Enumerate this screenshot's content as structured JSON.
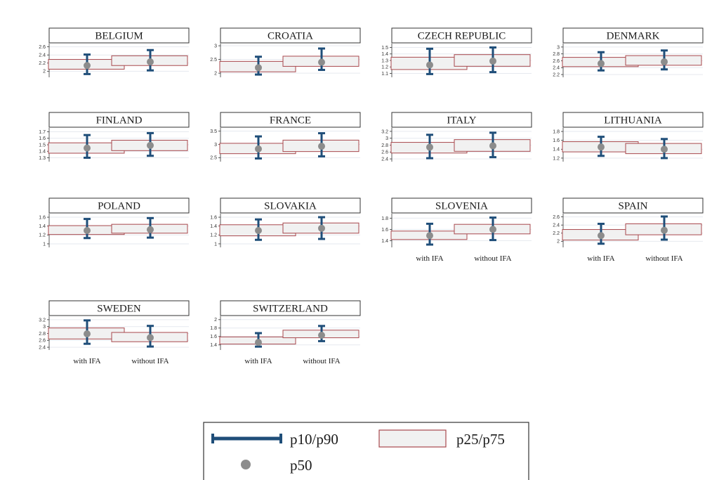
{
  "colors": {
    "whisker": "#1f4e79",
    "box_stroke": "#a8484d",
    "box_fill": "#f1f1f1",
    "median": "#8c8c8c",
    "grid": "#e6e9ef",
    "frame": "#333333"
  },
  "legend": {
    "whisker_label": "p10/p90",
    "box_label": "p25/p75",
    "median_label": "p50"
  },
  "chart_data": [
    {
      "type": "box",
      "title": "BELGIUM",
      "categories": [
        "with IFA",
        "without IFA"
      ],
      "show_categories": false,
      "yticks": [
        2,
        2.2,
        2.4,
        2.6
      ],
      "ylim": [
        1.85,
        2.68
      ],
      "series": [
        {
          "name": "with IFA",
          "p10": 1.93,
          "p25": 2.05,
          "p50": 2.14,
          "p75": 2.29,
          "p90": 2.41
        },
        {
          "name": "without IFA",
          "p10": 2.02,
          "p25": 2.14,
          "p50": 2.23,
          "p75": 2.38,
          "p90": 2.52
        }
      ]
    },
    {
      "type": "box",
      "title": "CROATIA",
      "categories": [
        "with IFA",
        "without IFA"
      ],
      "show_categories": false,
      "yticks": [
        2,
        2.5,
        3
      ],
      "ylim": [
        1.85,
        3.08
      ],
      "series": [
        {
          "name": "with IFA",
          "p10": 1.95,
          "p25": 2.05,
          "p50": 2.2,
          "p75": 2.43,
          "p90": 2.6
        },
        {
          "name": "without IFA",
          "p10": 2.12,
          "p25": 2.25,
          "p50": 2.4,
          "p75": 2.62,
          "p90": 2.9
        }
      ]
    },
    {
      "type": "box",
      "title": "CZECH REPUBLIC",
      "categories": [
        "with IFA",
        "without IFA"
      ],
      "show_categories": false,
      "yticks": [
        1.1,
        1.2,
        1.3,
        1.4,
        1.5
      ],
      "ylim": [
        1.04,
        1.56
      ],
      "series": [
        {
          "name": "with IFA",
          "p10": 1.09,
          "p25": 1.16,
          "p50": 1.23,
          "p75": 1.35,
          "p90": 1.48
        },
        {
          "name": "without IFA",
          "p10": 1.12,
          "p25": 1.21,
          "p50": 1.29,
          "p75": 1.39,
          "p90": 1.5
        }
      ]
    },
    {
      "type": "box",
      "title": "DENMARK",
      "categories": [
        "with IFA",
        "without IFA"
      ],
      "show_categories": false,
      "yticks": [
        2.2,
        2.4,
        2.6,
        2.8,
        3
      ],
      "ylim": [
        2.12,
        3.1
      ],
      "series": [
        {
          "name": "with IFA",
          "p10": 2.32,
          "p25": 2.43,
          "p50": 2.52,
          "p75": 2.7,
          "p90": 2.85
        },
        {
          "name": "without IFA",
          "p10": 2.35,
          "p25": 2.47,
          "p50": 2.57,
          "p75": 2.75,
          "p90": 2.9
        }
      ]
    },
    {
      "type": "box",
      "title": "FINLAND",
      "categories": [
        "with IFA",
        "without IFA"
      ],
      "show_categories": false,
      "yticks": [
        1.3,
        1.4,
        1.5,
        1.6,
        1.7
      ],
      "ylim": [
        1.24,
        1.76
      ],
      "series": [
        {
          "name": "with IFA",
          "p10": 1.3,
          "p25": 1.37,
          "p50": 1.45,
          "p75": 1.53,
          "p90": 1.65
        },
        {
          "name": "without IFA",
          "p10": 1.33,
          "p25": 1.41,
          "p50": 1.49,
          "p75": 1.57,
          "p90": 1.68
        }
      ]
    },
    {
      "type": "box",
      "title": "FRANCE",
      "categories": [
        "with IFA",
        "without IFA"
      ],
      "show_categories": false,
      "yticks": [
        2.5,
        3,
        3.5
      ],
      "ylim": [
        2.35,
        3.62
      ],
      "series": [
        {
          "name": "with IFA",
          "p10": 2.47,
          "p25": 2.65,
          "p50": 2.83,
          "p75": 3.04,
          "p90": 3.3
        },
        {
          "name": "without IFA",
          "p10": 2.55,
          "p25": 2.73,
          "p50": 2.93,
          "p75": 3.16,
          "p90": 3.42
        }
      ]
    },
    {
      "type": "box",
      "title": "ITALY",
      "categories": [
        "with IFA",
        "without IFA"
      ],
      "show_categories": false,
      "yticks": [
        2.4,
        2.6,
        2.8,
        3,
        3.2
      ],
      "ylim": [
        2.32,
        3.3
      ],
      "series": [
        {
          "name": "with IFA",
          "p10": 2.42,
          "p25": 2.57,
          "p50": 2.74,
          "p75": 2.88,
          "p90": 3.1
        },
        {
          "name": "without IFA",
          "p10": 2.45,
          "p25": 2.62,
          "p50": 2.78,
          "p75": 2.96,
          "p90": 3.16
        }
      ]
    },
    {
      "type": "box",
      "title": "LITHUANIA",
      "categories": [
        "with IFA",
        "without IFA"
      ],
      "show_categories": false,
      "yticks": [
        1.2,
        1.4,
        1.6,
        1.8
      ],
      "ylim": [
        1.12,
        1.88
      ],
      "series": [
        {
          "name": "with IFA",
          "p10": 1.25,
          "p25": 1.34,
          "p50": 1.45,
          "p75": 1.57,
          "p90": 1.68
        },
        {
          "name": "without IFA",
          "p10": 1.2,
          "p25": 1.3,
          "p50": 1.4,
          "p75": 1.53,
          "p90": 1.63
        }
      ]
    },
    {
      "type": "box",
      "title": "POLAND",
      "categories": [
        "with IFA",
        "without IFA"
      ],
      "show_categories": false,
      "yticks": [
        1,
        1.2,
        1.4,
        1.6
      ],
      "ylim": [
        0.92,
        1.68
      ],
      "series": [
        {
          "name": "with IFA",
          "p10": 1.13,
          "p25": 1.21,
          "p50": 1.3,
          "p75": 1.41,
          "p90": 1.56
        },
        {
          "name": "without IFA",
          "p10": 1.14,
          "p25": 1.24,
          "p50": 1.32,
          "p75": 1.44,
          "p90": 1.58
        }
      ]
    },
    {
      "type": "box",
      "title": "SLOVAKIA",
      "categories": [
        "with IFA",
        "without IFA"
      ],
      "show_categories": false,
      "yticks": [
        1,
        1.2,
        1.4,
        1.6
      ],
      "ylim": [
        0.92,
        1.68
      ],
      "series": [
        {
          "name": "with IFA",
          "p10": 1.09,
          "p25": 1.18,
          "p50": 1.3,
          "p75": 1.43,
          "p90": 1.55
        },
        {
          "name": "without IFA",
          "p10": 1.11,
          "p25": 1.24,
          "p50": 1.35,
          "p75": 1.47,
          "p90": 1.6
        }
      ]
    },
    {
      "type": "box",
      "title": "SLOVENIA",
      "categories": [
        "with IFA",
        "without IFA"
      ],
      "show_categories": true,
      "yticks": [
        1.4,
        1.6,
        1.8
      ],
      "ylim": [
        1.28,
        1.88
      ],
      "series": [
        {
          "name": "with IFA",
          "p10": 1.33,
          "p25": 1.42,
          "p50": 1.49,
          "p75": 1.57,
          "p90": 1.7
        },
        {
          "name": "without IFA",
          "p10": 1.41,
          "p25": 1.52,
          "p50": 1.6,
          "p75": 1.69,
          "p90": 1.81
        }
      ]
    },
    {
      "type": "box",
      "title": "SPAIN",
      "categories": [
        "with IFA",
        "without IFA"
      ],
      "show_categories": true,
      "yticks": [
        2,
        2.2,
        2.4,
        2.6
      ],
      "ylim": [
        1.85,
        2.68
      ],
      "series": [
        {
          "name": "with IFA",
          "p10": 1.94,
          "p25": 2.03,
          "p50": 2.14,
          "p75": 2.29,
          "p90": 2.43
        },
        {
          "name": "without IFA",
          "p10": 2.04,
          "p25": 2.16,
          "p50": 2.27,
          "p75": 2.43,
          "p90": 2.61
        }
      ]
    },
    {
      "type": "box",
      "title": "SWEDEN",
      "categories": [
        "with IFA",
        "without IFA"
      ],
      "show_categories": true,
      "yticks": [
        2.4,
        2.6,
        2.8,
        3,
        3.2
      ],
      "ylim": [
        2.32,
        3.3
      ],
      "series": [
        {
          "name": "with IFA",
          "p10": 2.5,
          "p25": 2.64,
          "p50": 2.79,
          "p75": 2.96,
          "p90": 3.18
        },
        {
          "name": "without IFA",
          "p10": 2.42,
          "p25": 2.56,
          "p50": 2.68,
          "p75": 2.83,
          "p90": 3.02
        }
      ]
    },
    {
      "type": "box",
      "title": "SWITZERLAND",
      "categories": [
        "with IFA",
        "without IFA"
      ],
      "show_categories": true,
      "yticks": [
        1.4,
        1.6,
        1.8,
        2
      ],
      "ylim": [
        1.28,
        2.08
      ],
      "series": [
        {
          "name": "with IFA",
          "p10": 1.36,
          "p25": 1.42,
          "p50": 1.46,
          "p75": 1.59,
          "p90": 1.68
        },
        {
          "name": "without IFA",
          "p10": 1.49,
          "p25": 1.57,
          "p50": 1.63,
          "p75": 1.75,
          "p90": 1.85
        }
      ]
    }
  ]
}
